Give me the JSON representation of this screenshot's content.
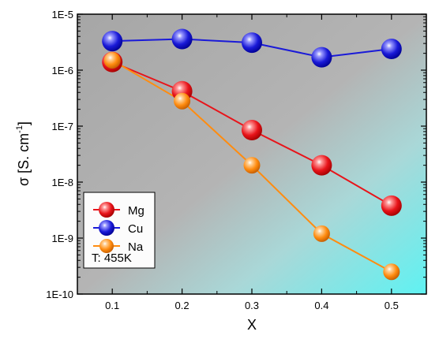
{
  "chart_data": {
    "type": "line",
    "title": "",
    "xlabel": "X",
    "ylabel": "σ [S. cm",
    "ylabel_sup": "-1",
    "ylabel_close": "]",
    "yscale": "log",
    "xlim": [
      0.05,
      0.55
    ],
    "ylim": [
      1e-10,
      1e-05
    ],
    "x_ticks": [
      0.1,
      0.2,
      0.3,
      0.4,
      0.5
    ],
    "x_tick_labels": [
      "0.1",
      "0.2",
      "0.3",
      "0.4",
      "0.5"
    ],
    "y_ticks": [
      1e-10,
      1e-09,
      1e-08,
      1e-07,
      1e-06,
      1e-05
    ],
    "y_tick_labels": [
      "1E-10",
      "1E-9",
      "1E-8",
      "1E-7",
      "1E-6",
      "1E-5"
    ],
    "x": [
      0.1,
      0.2,
      0.3,
      0.4,
      0.5
    ],
    "series": [
      {
        "name": "Mg",
        "color": "#e8141a",
        "values": [
          1.4e-06,
          4.2e-07,
          8.5e-08,
          2e-08,
          3.8e-09
        ],
        "marker_size": "large"
      },
      {
        "name": "Cu",
        "color": "#1a1ad8",
        "values": [
          3.3e-06,
          3.6e-06,
          3.1e-06,
          1.7e-06,
          2.4e-06
        ],
        "marker_size": "large"
      },
      {
        "name": "Na",
        "color": "#ff8c10",
        "values": [
          1.5e-06,
          2.8e-07,
          2e-08,
          1.2e-09,
          2.5e-10
        ],
        "marker_size": "small"
      }
    ],
    "legend": {
      "placement": "bottom-left",
      "note": "T: 455K"
    },
    "background": {
      "gradient": [
        "#9a9a9a",
        "#cfcfcf",
        "#6ff2f2"
      ]
    },
    "grid": false
  }
}
